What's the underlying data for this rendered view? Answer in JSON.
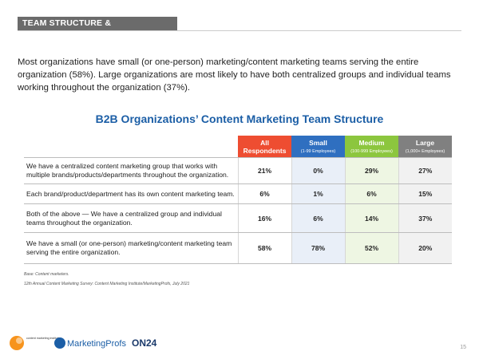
{
  "header": {
    "tag": "TEAM STRUCTURE & OUTSOURCING"
  },
  "intro": "Most organizations have small (or one-person) marketing/content marketing teams serving the entire organization (58%). Large organizations are most likely to have both centralized groups and individual teams working throughout the organization (37%).",
  "table": {
    "title": "B2B Organizations’ Content Marketing Team Structure",
    "columns": [
      {
        "name": "All Respondents",
        "color": "#ee4d31",
        "tint": "#ffffff"
      },
      {
        "name": "Small",
        "sub": "(1-99 Employees)",
        "color": "#2f6fc0",
        "tint": "#e9eff8"
      },
      {
        "name": "Medium",
        "sub": "(100-999 Employees)",
        "color": "#8cc63e",
        "tint": "#eef6e3"
      },
      {
        "name": "Large",
        "sub": "(1,000+ Employees)",
        "color": "#808080",
        "tint": "#f1f1f1"
      }
    ],
    "rows": [
      {
        "label": "We have a centralized content marketing group that works with multiple brands/products/departments throughout the organization.",
        "values": [
          "21%",
          "0%",
          "29%",
          "27%"
        ]
      },
      {
        "label": "Each brand/product/department has its own content marketing team.",
        "values": [
          "6%",
          "1%",
          "6%",
          "15%"
        ]
      },
      {
        "label": "Both of the above — We have a centralized group and individual teams throughout the organization.",
        "values": [
          "16%",
          "6%",
          "14%",
          "37%"
        ]
      },
      {
        "label": "We have a small (or one-person) marketing/content marketing team serving the entire organization.",
        "values": [
          "58%",
          "78%",
          "52%",
          "20%"
        ]
      }
    ]
  },
  "footnotes": [
    "Base: Content marketers.",
    "12th Annual Content Marketing Survey: Content Marketing Institute/MarketingProfs, July 2021"
  ],
  "logos": [
    "content marketing institute",
    "MarketingProfs",
    "ON24"
  ],
  "page_number": "15"
}
